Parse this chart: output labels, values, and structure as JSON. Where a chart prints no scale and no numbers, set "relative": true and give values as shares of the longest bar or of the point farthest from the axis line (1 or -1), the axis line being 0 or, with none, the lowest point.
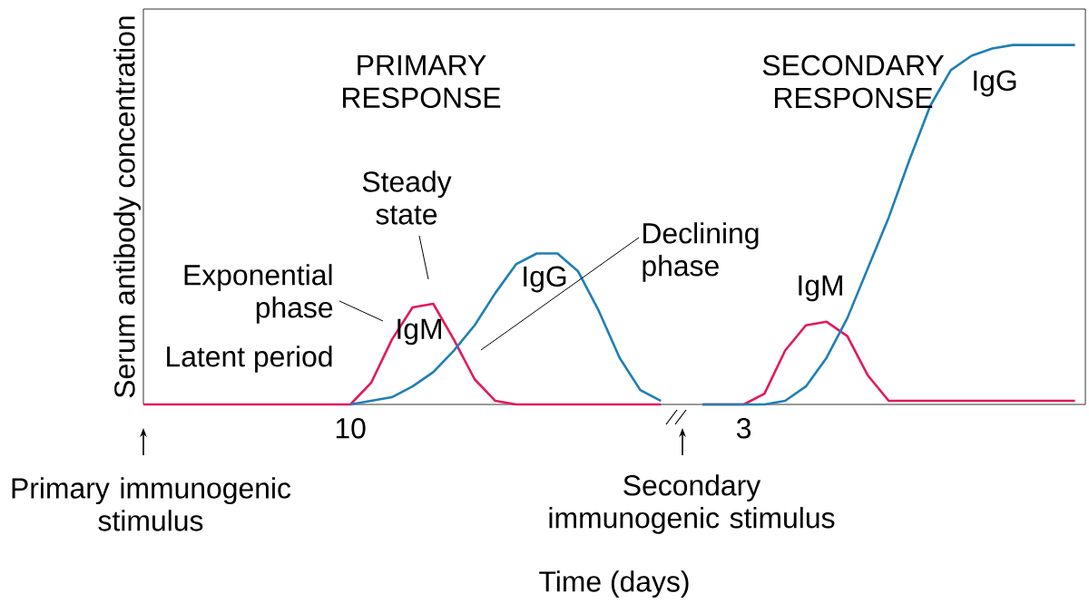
{
  "chart_data": {
    "type": "line",
    "relative": true,
    "xlabel": "Time (days)",
    "ylabel": "Serum antibody concentration",
    "categories": [
      null,
      null,
      null,
      null,
      null,
      null,
      null,
      null,
      null,
      null,
      "10",
      null,
      null,
      null,
      null,
      null,
      null,
      null,
      null,
      null,
      null,
      null,
      null,
      null,
      null,
      null,
      null,
      null,
      null,
      "3",
      null,
      null,
      null,
      null,
      null,
      null,
      null,
      null,
      null,
      null,
      null,
      null,
      null,
      null,
      null,
      null
    ],
    "series": [
      {
        "name": "IgM",
        "color": "#e2195b",
        "values": [
          0,
          0,
          0,
          0,
          0,
          0,
          0,
          0,
          0,
          0,
          0,
          0.06,
          0.18,
          0.27,
          0.28,
          0.18,
          0.07,
          0.01,
          0,
          0,
          0,
          0,
          0,
          0,
          0,
          0,
          null,
          0,
          0,
          0,
          0.03,
          0.15,
          0.22,
          0.23,
          0.19,
          0.08,
          0.01,
          0.01,
          0.01,
          0.01,
          0.01,
          0.01,
          0.01,
          0.01,
          0.01,
          0.01
        ]
      },
      {
        "name": "IgG",
        "color": "#1f7fb5",
        "values": [
          null,
          null,
          null,
          null,
          null,
          null,
          null,
          null,
          null,
          null,
          0,
          0.01,
          0.02,
          0.05,
          0.09,
          0.15,
          0.22,
          0.31,
          0.39,
          0.42,
          0.42,
          0.37,
          0.26,
          0.13,
          0.04,
          0.01,
          null,
          0,
          0,
          0,
          0,
          0.01,
          0.05,
          0.13,
          0.24,
          0.38,
          0.52,
          0.68,
          0.83,
          0.93,
          0.97,
          0.99,
          1,
          1,
          1,
          1
        ]
      }
    ],
    "annotations": [
      "PRIMARY RESPONSE",
      "SECONDARY RESPONSE",
      "Steady state",
      "Exponential phase",
      "Latent period",
      "Declining phase",
      "Primary immunogenic stimulus",
      "Secondary immunogenic stimulus"
    ]
  }
}
